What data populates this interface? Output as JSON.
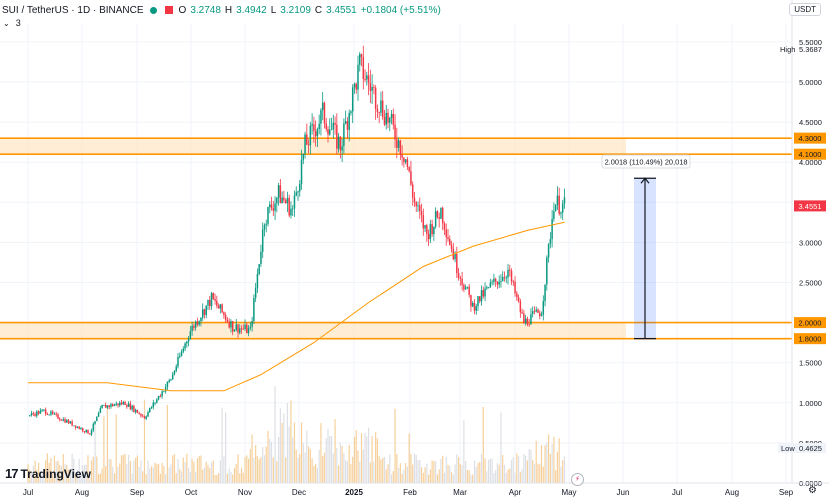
{
  "header": {
    "symbol": "SUI / TetherUS · 1D · BINANCE",
    "open_label": "O",
    "open": "3.2748",
    "high_label": "H",
    "high": "3.4942",
    "low_label": "L",
    "low": "3.2109",
    "close_label": "C",
    "close": "3.4551",
    "change": "+0.1804 (+5.51%)",
    "indicator_count": "3",
    "currency": "USDT"
  },
  "branding": {
    "logo_text": "TradingView"
  },
  "colors": {
    "up": "#089981",
    "down": "#f23645",
    "accent": "#ff9800",
    "measure": "#2962ff",
    "volume": "#f5c88a"
  },
  "chart_data": {
    "type": "candlestick",
    "title": "",
    "x_ticks": [
      "Jul",
      "Aug",
      "Sep",
      "Oct",
      "Nov",
      "Dec",
      "2025",
      "Feb",
      "Mar",
      "Apr",
      "May",
      "Jun",
      "Jul",
      "Aug",
      "Sep"
    ],
    "y_ticks": [
      "5.5000",
      "5.0000",
      "4.5000",
      "4.0000",
      "3.5000",
      "3.0000",
      "2.5000",
      "2.0000",
      "1.5000",
      "1.0000",
      "0.5000",
      "0.0000"
    ],
    "y_tick_values": [
      5.5,
      5.0,
      4.5,
      4.0,
      3.5,
      3.0,
      2.5,
      2.0,
      1.5,
      1.0,
      0.5,
      0.0
    ],
    "ylim": [
      0,
      5.5
    ],
    "price_anchors": [
      {
        "date": "2024-07-01",
        "price": 0.84
      },
      {
        "date": "2024-07-10",
        "price": 0.9
      },
      {
        "date": "2024-07-22",
        "price": 0.78
      },
      {
        "date": "2024-08-05",
        "price": 0.62
      },
      {
        "date": "2024-08-12",
        "price": 0.95
      },
      {
        "date": "2024-08-25",
        "price": 1.0
      },
      {
        "date": "2024-09-05",
        "price": 0.82
      },
      {
        "date": "2024-09-20",
        "price": 1.3
      },
      {
        "date": "2024-10-01",
        "price": 1.9
      },
      {
        "date": "2024-10-13",
        "price": 2.3
      },
      {
        "date": "2024-10-25",
        "price": 1.95
      },
      {
        "date": "2024-11-04",
        "price": 1.9
      },
      {
        "date": "2024-11-12",
        "price": 3.3
      },
      {
        "date": "2024-11-20",
        "price": 3.6
      },
      {
        "date": "2024-11-28",
        "price": 3.4
      },
      {
        "date": "2024-12-05",
        "price": 4.2
      },
      {
        "date": "2024-12-15",
        "price": 4.6
      },
      {
        "date": "2024-12-25",
        "price": 4.2
      },
      {
        "date": "2025-01-05",
        "price": 5.2
      },
      {
        "date": "2025-01-12",
        "price": 4.9
      },
      {
        "date": "2025-01-22",
        "price": 4.5
      },
      {
        "date": "2025-01-31",
        "price": 4.05
      },
      {
        "date": "2025-02-05",
        "price": 3.5
      },
      {
        "date": "2025-02-12",
        "price": 3.1
      },
      {
        "date": "2025-02-20",
        "price": 3.4
      },
      {
        "date": "2025-03-01",
        "price": 2.7
      },
      {
        "date": "2025-03-10",
        "price": 2.2
      },
      {
        "date": "2025-03-20",
        "price": 2.45
      },
      {
        "date": "2025-03-30",
        "price": 2.65
      },
      {
        "date": "2025-04-08",
        "price": 2.0
      },
      {
        "date": "2025-04-18",
        "price": 2.15
      },
      {
        "date": "2025-04-25",
        "price": 3.5
      },
      {
        "date": "2025-05-01",
        "price": 3.45
      }
    ],
    "moving_average_anchors": [
      {
        "date": "2024-07-01",
        "price": 1.25
      },
      {
        "date": "2024-08-15",
        "price": 1.25
      },
      {
        "date": "2024-09-20",
        "price": 1.15
      },
      {
        "date": "2024-10-20",
        "price": 1.15
      },
      {
        "date": "2024-11-10",
        "price": 1.35
      },
      {
        "date": "2024-12-10",
        "price": 1.75
      },
      {
        "date": "2025-01-10",
        "price": 2.25
      },
      {
        "date": "2025-02-10",
        "price": 2.7
      },
      {
        "date": "2025-03-10",
        "price": 2.95
      },
      {
        "date": "2025-04-10",
        "price": 3.15
      },
      {
        "date": "2025-05-01",
        "price": 3.25
      }
    ],
    "zones": [
      {
        "from": 4.1,
        "to": 4.3,
        "labels": [
          "4.1000",
          "4.3000"
        ]
      },
      {
        "from": 1.8,
        "to": 2.0,
        "labels": [
          "1.8000",
          "2.0000"
        ]
      }
    ],
    "measurement": {
      "from": 1.8,
      "to": 3.8,
      "label": "2.0018 (110.49%) 20,018"
    },
    "high_marker": {
      "label": "High",
      "value": "5.3687"
    },
    "low_marker": {
      "label": "Low",
      "value": "0.4625"
    },
    "last_price": {
      "value": 3.4551,
      "label": "3.4551"
    }
  }
}
